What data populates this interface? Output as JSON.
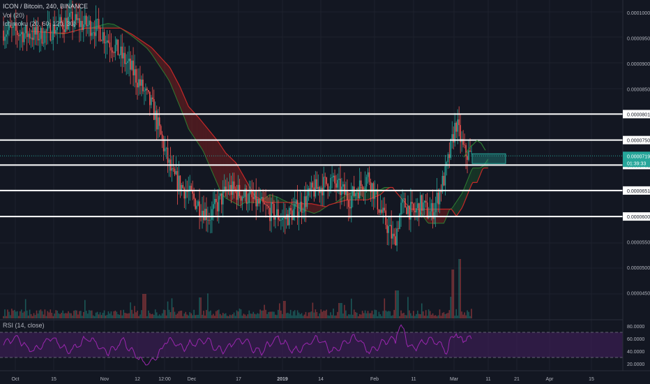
{
  "header": {
    "symbol_line": "ICON / Bitcoin, 240, BINANCE",
    "volume_label": "Vol (20)",
    "ichimoku_label": "Ichimoku (20, 60, 120, 30)"
  },
  "rsi": {
    "label": "RSI (14, close)",
    "ticks": [
      "80.0000",
      "60.0000",
      "40.0000",
      "20.0000"
    ]
  },
  "price_axis": {
    "ticks": [
      "0.0001000",
      "0.0000950",
      "0.0000900",
      "0.0000850",
      "0.0000550",
      "0.0000500",
      "0.0000450"
    ]
  },
  "price_badges": {
    "current_price": "0.0000719",
    "countdown": "01:39:33"
  },
  "colors": {
    "background": "#131722",
    "grid": "#1e222d",
    "up": "#26a69a",
    "down": "#ef5350",
    "rsi_line": "#9c27b0",
    "rsi_band": "#3b1e52",
    "cloud_red": "#7a1f1f",
    "cloud_green": "#1b4d2a",
    "current_badge": "#26a69a"
  },
  "chart_data": {
    "type": "candlestick",
    "symbol": "ICON / Bitcoin",
    "interval": "240",
    "exchange": "BINANCE",
    "x_tick_labels": [
      "Oct",
      "15",
      "Nov",
      "12",
      "12:00",
      "Dec",
      "17",
      "2019",
      "14",
      "Feb",
      "11",
      "Mar",
      "11",
      "21",
      "Apr",
      "15"
    ],
    "y_range": [
      4e-05,
      0.0001025
    ],
    "horizontal_levels": [
      {
        "value": 8.01e-05,
        "label": "0.0000801"
      },
      {
        "value": 7.5e-05,
        "label": "0.0000750"
      },
      {
        "value": 7.01e-05,
        "label": "0.0000701"
      },
      {
        "value": 6.51e-05,
        "label": "0.0000651"
      },
      {
        "value": 6e-05,
        "label": "0.0000600"
      }
    ],
    "price_path_key_points": [
      [
        0,
        9.65e-05
      ],
      [
        0.08,
        9.55e-05
      ],
      [
        0.14,
        9.85e-05
      ],
      [
        0.2,
        9.7e-05
      ],
      [
        0.24,
        9.3e-05
      ],
      [
        0.28,
        8.8e-05
      ],
      [
        0.32,
        8.1e-05
      ],
      [
        0.36,
        6.8e-05
      ],
      [
        0.4,
        6.4e-05
      ],
      [
        0.44,
        6e-05
      ],
      [
        0.48,
        6.55e-05
      ],
      [
        0.52,
        6.4e-05
      ],
      [
        0.56,
        6.15e-05
      ],
      [
        0.6,
        5.95e-05
      ],
      [
        0.64,
        6.25e-05
      ],
      [
        0.66,
        6.5e-05
      ],
      [
        0.7,
        6.7e-05
      ],
      [
        0.74,
        6.35e-05
      ],
      [
        0.78,
        6.8e-05
      ],
      [
        0.8,
        7.05e-05
      ],
      [
        0.84,
        6.6e-05
      ],
      [
        0.88,
        6.5e-05
      ],
      [
        0.9,
        6.4e-05
      ],
      [
        0.95,
        6.1e-05
      ],
      [
        1.0,
        5.5e-05
      ]
    ],
    "current_price": 7.19e-05,
    "rsi_levels": [
      70,
      30
    ],
    "rsi_range": [
      10,
      90
    ]
  }
}
